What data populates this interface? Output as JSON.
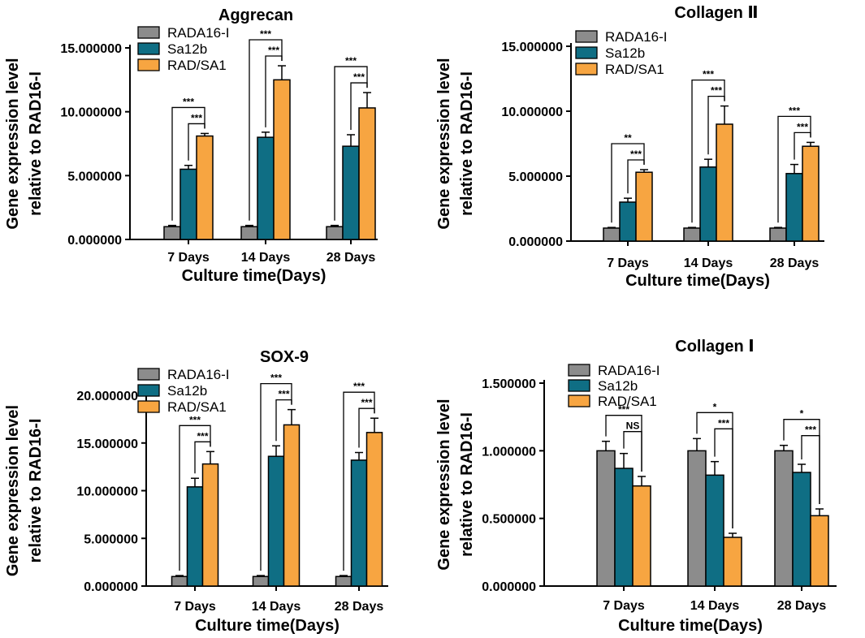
{
  "chart_data": [
    {
      "type": "bar",
      "title": "Aggrecan",
      "xlabel": "Culture time(Days)",
      "ylabel": [
        "Gene expression level",
        "relative to RAD16-I"
      ],
      "categories": [
        "7 Days",
        "14 Days",
        "28 Days"
      ],
      "ylim": [
        0,
        15
      ],
      "yticks": [
        0,
        5,
        10,
        15
      ],
      "ytick_labels": [
        "0.000000",
        "5.000000",
        "10.000000",
        "15.000000"
      ],
      "series": [
        {
          "name": "RADA16-I",
          "color": "#8c8c8c",
          "values": [
            1.0,
            1.0,
            1.0
          ],
          "errors": [
            0.1,
            0.1,
            0.1
          ]
        },
        {
          "name": "Sa12b",
          "color": "#0f6e84",
          "values": [
            5.5,
            8.0,
            7.3
          ],
          "errors": [
            0.3,
            0.4,
            0.9
          ]
        },
        {
          "name": "RAD/SA1",
          "color": "#f7a541",
          "values": [
            8.1,
            12.5,
            10.3
          ],
          "errors": [
            0.2,
            1.1,
            1.2
          ]
        }
      ],
      "annotations": [
        {
          "group": 0,
          "from": 0,
          "to": 2,
          "level": 2,
          "label": "***"
        },
        {
          "group": 0,
          "from": 1,
          "to": 2,
          "level": 1,
          "label": "***"
        },
        {
          "group": 1,
          "from": 0,
          "to": 2,
          "level": 2,
          "label": "***"
        },
        {
          "group": 1,
          "from": 1,
          "to": 2,
          "level": 1,
          "label": "***"
        },
        {
          "group": 2,
          "from": 0,
          "to": 2,
          "level": 2,
          "label": "***"
        },
        {
          "group": 2,
          "from": 1,
          "to": 2,
          "level": 1,
          "label": "***"
        }
      ]
    },
    {
      "type": "bar",
      "title": "Collagen Ⅱ",
      "xlabel": "Culture time(Days)",
      "ylabel": [
        "Gene expression level",
        "relative to RAD16-I"
      ],
      "categories": [
        "7 Days",
        "14 Days",
        "28 Days"
      ],
      "ylim": [
        0,
        15
      ],
      "yticks": [
        0,
        5,
        10,
        15
      ],
      "ytick_labels": [
        "0.000000",
        "5.000000",
        "10.000000",
        "15.000000"
      ],
      "series": [
        {
          "name": "RADA16-I",
          "color": "#8c8c8c",
          "values": [
            1.0,
            1.0,
            1.0
          ],
          "errors": [
            0.05,
            0.05,
            0.05
          ]
        },
        {
          "name": "Sa12b",
          "color": "#0f6e84",
          "values": [
            3.0,
            5.7,
            5.2
          ],
          "errors": [
            0.3,
            0.6,
            0.7
          ]
        },
        {
          "name": "RAD/SA1",
          "color": "#f7a541",
          "values": [
            5.3,
            9.0,
            7.3
          ],
          "errors": [
            0.2,
            1.4,
            0.3
          ]
        }
      ],
      "annotations": [
        {
          "group": 0,
          "from": 0,
          "to": 2,
          "level": 2,
          "label": "**"
        },
        {
          "group": 0,
          "from": 1,
          "to": 2,
          "level": 1,
          "label": "***"
        },
        {
          "group": 1,
          "from": 0,
          "to": 2,
          "level": 2,
          "label": "***"
        },
        {
          "group": 1,
          "from": 1,
          "to": 2,
          "level": 1,
          "label": "***"
        },
        {
          "group": 2,
          "from": 0,
          "to": 2,
          "level": 2,
          "label": "***"
        },
        {
          "group": 2,
          "from": 1,
          "to": 2,
          "level": 1,
          "label": "***"
        }
      ]
    },
    {
      "type": "bar",
      "title": "SOX-9",
      "xlabel": "Culture time(Days)",
      "ylabel": [
        "Gene expression level",
        "relative to RAD16-I"
      ],
      "categories": [
        "7 Days",
        "14 Days",
        "28 Days"
      ],
      "ylim": [
        0,
        20
      ],
      "yticks": [
        0,
        5,
        10,
        15,
        20
      ],
      "ytick_labels": [
        "0.000000",
        "5.000000",
        "10.000000",
        "15.000000",
        "20.000000"
      ],
      "series": [
        {
          "name": "RADA16-I",
          "color": "#8c8c8c",
          "values": [
            1.0,
            1.0,
            1.0
          ],
          "errors": [
            0.1,
            0.1,
            0.1
          ]
        },
        {
          "name": "Sa12b",
          "color": "#0f6e84",
          "values": [
            10.4,
            13.6,
            13.2
          ],
          "errors": [
            0.9,
            1.1,
            0.8
          ]
        },
        {
          "name": "RAD/SA1",
          "color": "#f7a541",
          "values": [
            12.8,
            16.9,
            16.1
          ],
          "errors": [
            1.3,
            1.6,
            1.5
          ]
        }
      ],
      "annotations": [
        {
          "group": 0,
          "from": 0,
          "to": 2,
          "level": 2,
          "label": "***"
        },
        {
          "group": 0,
          "from": 1,
          "to": 2,
          "level": 1,
          "label": "***"
        },
        {
          "group": 1,
          "from": 0,
          "to": 2,
          "level": 2,
          "label": "***"
        },
        {
          "group": 1,
          "from": 1,
          "to": 2,
          "level": 1,
          "label": "***"
        },
        {
          "group": 2,
          "from": 0,
          "to": 2,
          "level": 2,
          "label": "***"
        },
        {
          "group": 2,
          "from": 1,
          "to": 2,
          "level": 1,
          "label": "***"
        }
      ]
    },
    {
      "type": "bar",
      "title": "Collagen Ⅰ",
      "xlabel": "Culture time(Days)",
      "ylabel": [
        "Gene expression level",
        "relative to RAD16-I"
      ],
      "categories": [
        "7 Days",
        "14 Days",
        "28 Days"
      ],
      "ylim": [
        0,
        1.5
      ],
      "yticks": [
        0,
        0.5,
        1.0,
        1.5
      ],
      "ytick_labels": [
        "0.000000",
        "0.500000",
        "1.000000",
        "1.500000"
      ],
      "series": [
        {
          "name": "RADA16-I",
          "color": "#8c8c8c",
          "values": [
            1.0,
            1.0,
            1.0
          ],
          "errors": [
            0.07,
            0.09,
            0.04
          ]
        },
        {
          "name": "Sa12b",
          "color": "#0f6e84",
          "values": [
            0.87,
            0.82,
            0.84
          ],
          "errors": [
            0.11,
            0.1,
            0.06
          ]
        },
        {
          "name": "RAD/SA1",
          "color": "#f7a541",
          "values": [
            0.74,
            0.36,
            0.52
          ],
          "errors": [
            0.07,
            0.03,
            0.05
          ]
        }
      ],
      "annotations": [
        {
          "group": 0,
          "from": 0,
          "to": 2,
          "level": 2,
          "label": "***"
        },
        {
          "group": 0,
          "from": 1,
          "to": 2,
          "level": 1,
          "label": "NS"
        },
        {
          "group": 1,
          "from": 0,
          "to": 2,
          "level": 2,
          "label": "*"
        },
        {
          "group": 1,
          "from": 1,
          "to": 2,
          "level": 1,
          "label": "***"
        },
        {
          "group": 2,
          "from": 0,
          "to": 2,
          "level": 2,
          "label": "*"
        },
        {
          "group": 2,
          "from": 1,
          "to": 2,
          "level": 1,
          "label": "***"
        }
      ]
    }
  ]
}
